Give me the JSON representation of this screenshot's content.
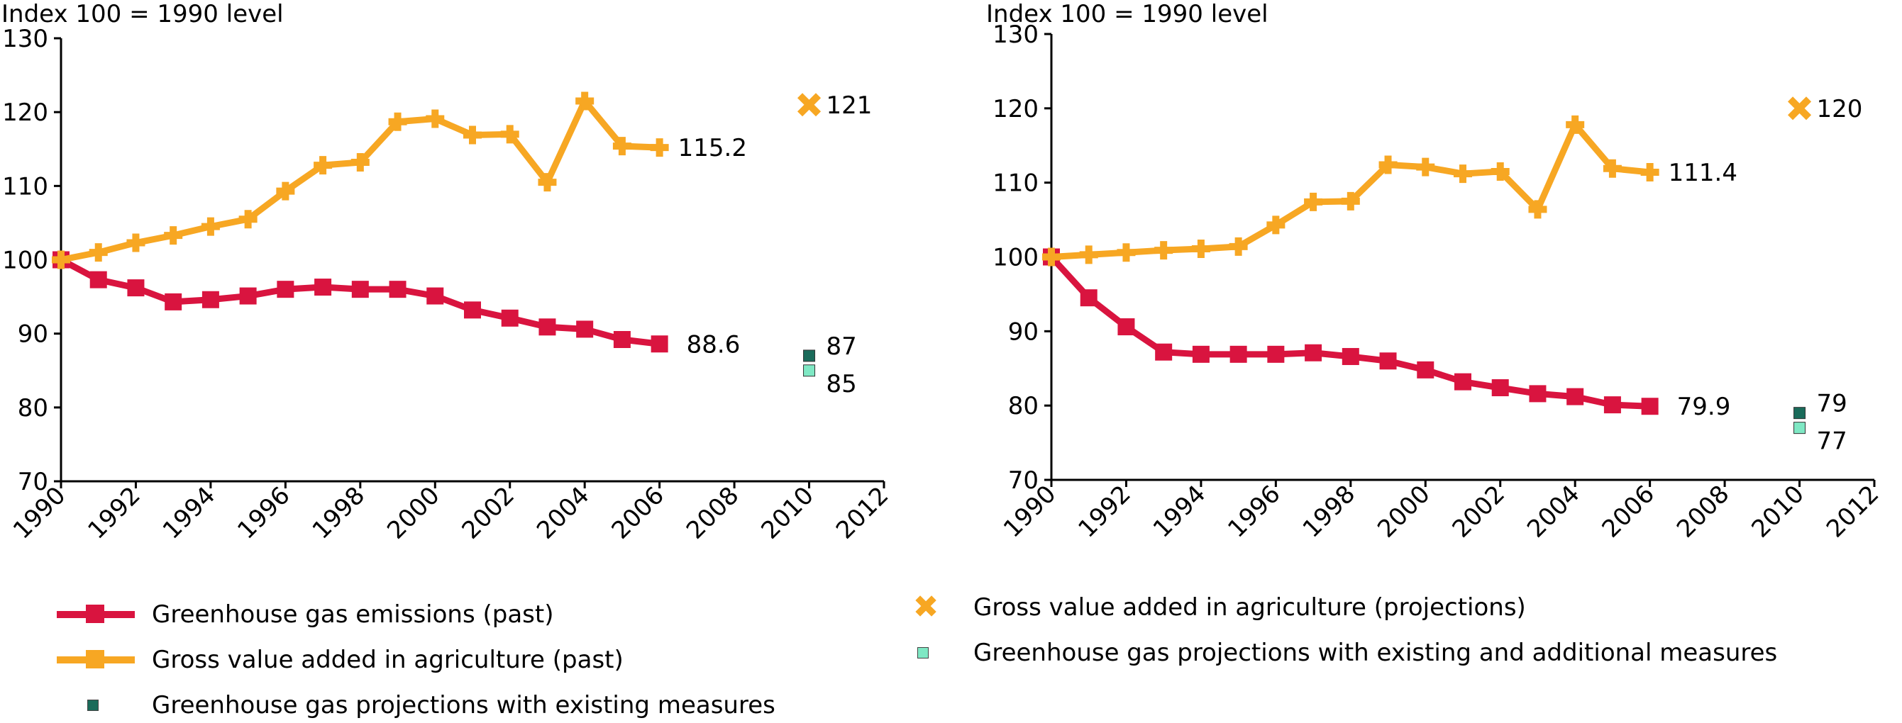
{
  "colors": {
    "ghg_past": "#d9143f",
    "gva_past": "#f7a723",
    "gva_proj": "#f7a723",
    "ghg_proj_existing": "#1a6b5a",
    "ghg_proj_additional": "#7fe8c4"
  },
  "legend": {
    "ghg_past": "Greenhouse gas emissions (past)",
    "gva_past": "Gross value added in agriculture (past)",
    "ghg_proj_existing": "Greenhouse gas projections with existing measures",
    "gva_proj": "Gross value added in agriculture (projections)",
    "ghg_proj_additional": "Greenhouse gas projections with existing and additional measures"
  },
  "chart_data": [
    {
      "type": "line",
      "ylabel": "Index 100 = 1990 level",
      "xlim": [
        1990,
        2012
      ],
      "ylim": [
        70,
        130
      ],
      "xticks": [
        1990,
        1992,
        1994,
        1996,
        1998,
        2000,
        2002,
        2004,
        2006,
        2008,
        2010,
        2012
      ],
      "yticks": [
        70,
        80,
        90,
        100,
        110,
        120,
        130
      ],
      "grid": false,
      "x": [
        1990,
        1991,
        1992,
        1993,
        1994,
        1995,
        1996,
        1997,
        1998,
        1999,
        2000,
        2001,
        2002,
        2003,
        2004,
        2005,
        2006
      ],
      "series": [
        {
          "name": "Greenhouse gas emissions (past)",
          "key": "ghg_past",
          "values": [
            100,
            97.3,
            96.2,
            94.3,
            94.6,
            95.1,
            96.0,
            96.3,
            96.0,
            96.0,
            95.1,
            93.2,
            92.1,
            90.9,
            90.6,
            89.2,
            88.6
          ],
          "end_label": "88.6"
        },
        {
          "name": "Gross value added in agriculture (past)",
          "key": "gva_past",
          "values": [
            100,
            101.0,
            102.3,
            103.3,
            104.5,
            105.5,
            109.3,
            112.8,
            113.2,
            118.7,
            119.1,
            116.9,
            117.0,
            110.5,
            121.5,
            115.4,
            115.2
          ],
          "end_label": "115.2"
        }
      ],
      "projections": [
        {
          "name": "Gross value added in agriculture (projections)",
          "key": "gva_proj",
          "x": 2010,
          "y": 121,
          "label": "121"
        },
        {
          "name": "Greenhouse gas projections with existing measures",
          "key": "ghg_proj_existing",
          "x": 2010,
          "y": 87,
          "label": "87"
        },
        {
          "name": "Greenhouse gas projections with existing and additional measures",
          "key": "ghg_proj_additional",
          "x": 2010,
          "y": 85,
          "label": "85"
        }
      ]
    },
    {
      "type": "line",
      "ylabel": "Index 100 = 1990 level",
      "xlim": [
        1990,
        2012
      ],
      "ylim": [
        70,
        130
      ],
      "xticks": [
        1990,
        1992,
        1994,
        1996,
        1998,
        2000,
        2002,
        2004,
        2006,
        2008,
        2010,
        2012
      ],
      "yticks": [
        70,
        80,
        90,
        100,
        110,
        120,
        130
      ],
      "grid": false,
      "x": [
        1990,
        1991,
        1992,
        1993,
        1994,
        1995,
        1996,
        1997,
        1998,
        1999,
        2000,
        2001,
        2002,
        2003,
        2004,
        2005,
        2006
      ],
      "series": [
        {
          "name": "Greenhouse gas emissions (past)",
          "key": "ghg_past",
          "values": [
            100,
            94.5,
            90.6,
            87.2,
            86.9,
            86.9,
            86.9,
            87.1,
            86.6,
            86.0,
            84.8,
            83.2,
            82.4,
            81.6,
            81.2,
            80.1,
            79.9
          ],
          "end_label": "79.9"
        },
        {
          "name": "Gross value added in agriculture (past)",
          "key": "gva_past",
          "values": [
            100,
            100.3,
            100.6,
            100.9,
            101.1,
            101.4,
            104.3,
            107.4,
            107.5,
            112.4,
            112.1,
            111.2,
            111.5,
            106.4,
            117.8,
            111.9,
            111.4
          ],
          "end_label": "111.4"
        }
      ],
      "projections": [
        {
          "name": "Gross value added in agriculture (projections)",
          "key": "gva_proj",
          "x": 2010,
          "y": 120,
          "label": "120"
        },
        {
          "name": "Greenhouse gas projections with existing measures",
          "key": "ghg_proj_existing",
          "x": 2010,
          "y": 79,
          "label": "79"
        },
        {
          "name": "Greenhouse gas projections with existing and additional measures",
          "key": "ghg_proj_additional",
          "x": 2010,
          "y": 77,
          "label": "77"
        }
      ]
    }
  ]
}
